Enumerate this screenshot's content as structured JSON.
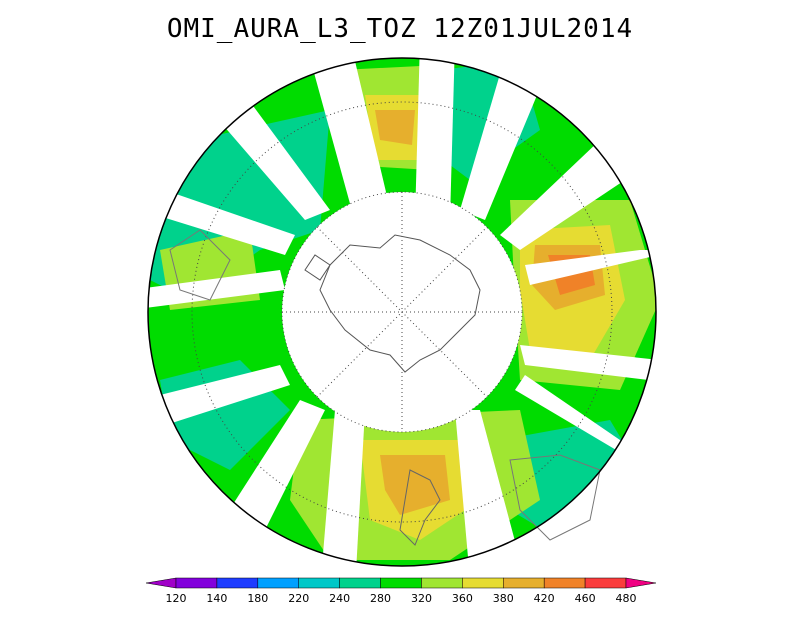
{
  "title": "OMI_AURA_L3_TOZ 12Z01JUL2014",
  "legend": {
    "labels": [
      "120",
      "140",
      "180",
      "220",
      "240",
      "280",
      "320",
      "360",
      "380",
      "420",
      "460",
      "480"
    ],
    "colors": [
      "#a000c8",
      "#8200dc",
      "#1e3cff",
      "#00a0ff",
      "#00c8c8",
      "#00d28c",
      "#00dc00",
      "#a0e632",
      "#e6dc32",
      "#e6af2d",
      "#f08228",
      "#fa3c3c",
      "#f00082"
    ]
  },
  "map": {
    "projection": "south-polar-stereographic",
    "field_colors": {
      "low": "#00d28c",
      "mid": "#00dc00",
      "high": "#a0e632",
      "higher": "#e6dc32",
      "peak": "#e6af2d",
      "max": "#f08228"
    },
    "coast_color": "#555555",
    "grid_color": "#444444"
  }
}
